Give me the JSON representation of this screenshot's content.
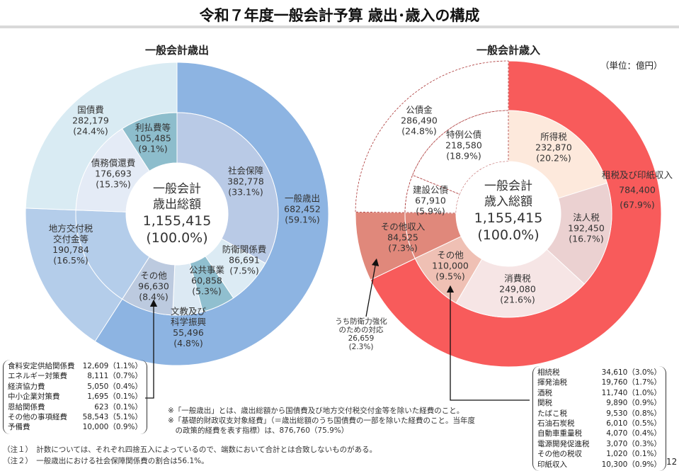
{
  "header": {
    "title": "令和７年度一般会計予算 歳出･歳入の構成",
    "unit": "（単位：億円）",
    "page": "12"
  },
  "chart_data": [
    {
      "type": "pie",
      "title": "一般会計歳出",
      "center": {
        "line1": "一般会計",
        "line2": "歳出総額",
        "value": "1,155,415",
        "pct": "(100.0%)"
      },
      "outer": [
        {
          "name": "一般歳出",
          "value": "682,452",
          "pct": "(59.1%)",
          "share": 59.1,
          "color": "#8db4e2"
        },
        {
          "name": "地方交付税交付金等",
          "value": "190,784",
          "pct": "(16.5%)",
          "share": 16.5,
          "color": "#b4cdea"
        },
        {
          "name": "国債費",
          "value": "282,179",
          "pct": "(24.4%)",
          "share": 24.4,
          "color": "#d9ebf3"
        }
      ],
      "inner": [
        {
          "name": "社会保障",
          "value": "382,778",
          "pct": "(33.1%)",
          "share": 33.1,
          "color": "#b9cae6"
        },
        {
          "name": "防衛関係費",
          "value": "86,691",
          "pct": "(7.5%)",
          "share": 7.5,
          "color": "#dcebf4"
        },
        {
          "name": "公共事業",
          "value": "60,858",
          "pct": "(5.3%)",
          "share": 5.3,
          "color": "#90bfcf"
        },
        {
          "name": "文教及び科学振興",
          "value": "55,496",
          "pct": "(4.8%)",
          "share": 4.8,
          "color": "#dce9f3"
        },
        {
          "name": "その他",
          "value": "96,630",
          "pct": "(8.4%)",
          "share": 8.4,
          "color": "#bccadf"
        },
        {
          "name": "地方交付税交付金等",
          "value": "190,784",
          "pct": "(16.5%)",
          "share": 16.5,
          "color": "#b4cdea"
        },
        {
          "name": "債務償還費",
          "value": "176,693",
          "pct": "(15.3%)",
          "share": 15.3,
          "color": "#e4ebf6"
        },
        {
          "name": "利払費等",
          "value": "105,485",
          "pct": "(9.1%)",
          "share": 9.1,
          "color": "#8dbdcc"
        }
      ],
      "breakdown": [
        {
          "name": "食料安定供給関係費",
          "value": "12,609（1.1%）"
        },
        {
          "name": "エネルギー対策費",
          "value": "8,111（0.7%）"
        },
        {
          "name": "経済協力費",
          "value": "5,050（0.4%）"
        },
        {
          "name": "中小企業対策費",
          "value": "1,695（0.1%）"
        },
        {
          "name": "恩給関係費",
          "value": "623（0.1%）"
        },
        {
          "name": "その他の事項経費",
          "value": "58,543（5.1%）"
        },
        {
          "name": "予備費",
          "value": "10,000（0.9%）"
        }
      ]
    },
    {
      "type": "pie",
      "title": "一般会計歳入",
      "center": {
        "line1": "一般会計",
        "line2": "歳入総額",
        "value": "1,155,415",
        "pct": "(100.0%)"
      },
      "outer": [
        {
          "name": "租税及び印紙収入",
          "value": "784,400",
          "pct": "(67.9%)",
          "share": 67.9,
          "color": "#f85b5b"
        },
        {
          "name": "その他収入",
          "value": "84,525",
          "pct": "(7.3%)",
          "share": 7.3,
          "color": "#e0887b"
        },
        {
          "name": "公債金",
          "value": "286,490",
          "pct": "(24.8%)",
          "share": 24.8,
          "color": "#ffffff",
          "dashed": true
        }
      ],
      "inner": [
        {
          "name": "所得税",
          "value": "232,870",
          "pct": "(20.2%)",
          "share": 20.2,
          "color": "#fde9dc"
        },
        {
          "name": "法人税",
          "value": "192,450",
          "pct": "(16.7%)",
          "share": 16.7,
          "color": "#ebd1d1"
        },
        {
          "name": "消費税",
          "value": "249,080",
          "pct": "(21.6%)",
          "share": 21.6,
          "color": "#f6e5e5"
        },
        {
          "name": "その他",
          "value": "110,000",
          "pct": "(9.5%)",
          "share": 9.5,
          "color": "#efc0b4"
        },
        {
          "name": "その他収入",
          "value": "84,525",
          "pct": "(7.3%)",
          "share": 7.3,
          "color": "#e0887b"
        },
        {
          "name": "建設公債",
          "value": "67,910",
          "pct": "(5.9%)",
          "share": 5.9,
          "color": "#ffffff",
          "dashed": true
        },
        {
          "name": "特例公債",
          "value": "218,580",
          "pct": "(18.9%)",
          "share": 18.9,
          "color": "#ffffff",
          "dashed": true
        }
      ],
      "annotation": {
        "line1": "うち防衛力強化",
        "line2": "のための対応",
        "value": "26,659",
        "pct": "(2.3%)"
      },
      "breakdown": [
        {
          "name": "相続税",
          "value": "34,610（3.0%）"
        },
        {
          "name": "揮発油税",
          "value": "19,760（1.7%）"
        },
        {
          "name": "酒税",
          "value": "11,740（1.0%）"
        },
        {
          "name": "関税",
          "value": "9,890（0.9%）"
        },
        {
          "name": "たばこ税",
          "value": "9,530（0.8%）"
        },
        {
          "name": "石油石炭税",
          "value": "6,010（0.5%）"
        },
        {
          "name": "自動車重量税",
          "value": "4,070（0.4%）"
        },
        {
          "name": "電源開発促進税",
          "value": "3,070（0.3%）"
        },
        {
          "name": "その他の税収",
          "value": "1,020（0.1%）"
        },
        {
          "name": "印紙収入",
          "value": "10,300（0.9%）"
        }
      ]
    }
  ],
  "notes": {
    "asterisk1": "※「一般歳出」とは、歳出総額から国債費及び地方交付税交付金等を除いた経費のこと。",
    "asterisk2": "※「基礎的財政収支対象経費」（＝歳出総額のうち国債費の一部を除いた経費のこと。当年度",
    "asterisk3": "　の政策的経費を表す指標）は、876,760（75.9%）",
    "note1": "（注１）　計数については、それぞれ四捨五入によっているので、端数において合計とは合致しないものがある。",
    "note2": "（注２）　一般歳出における社会保障関係費の割合は56.1%。"
  }
}
